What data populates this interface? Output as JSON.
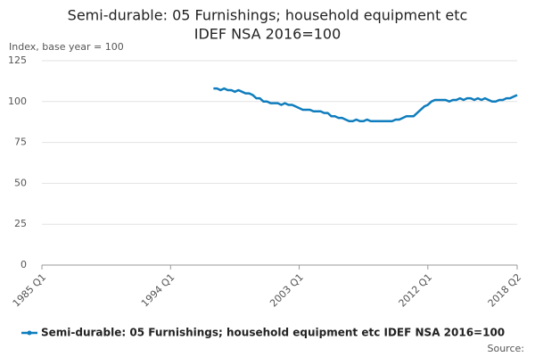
{
  "chart_data": {
    "type": "line",
    "title": [
      "Semi-durable: 05 Furnishings; household equipment etc",
      "IDEF NSA 2016=100"
    ],
    "y_label": "Index, base year = 100",
    "source": "Source:",
    "categories": [
      "1985 Q1",
      null,
      null,
      null,
      null,
      null,
      null,
      null,
      null,
      null,
      null,
      null,
      null,
      null,
      null,
      null,
      null,
      null,
      null,
      null,
      null,
      null,
      null,
      null,
      null,
      null,
      null,
      null,
      null,
      null,
      null,
      null,
      null,
      null,
      null,
      null,
      "1994 Q1",
      null,
      null,
      null,
      null,
      null,
      null,
      null,
      null,
      null,
      null,
      null,
      null,
      null,
      null,
      null,
      null,
      null,
      null,
      null,
      null,
      null,
      null,
      null,
      null,
      null,
      null,
      null,
      null,
      null,
      null,
      null,
      null,
      null,
      null,
      null,
      "2003 Q1",
      null,
      null,
      null,
      null,
      null,
      null,
      null,
      null,
      null,
      null,
      null,
      null,
      null,
      null,
      null,
      null,
      null,
      null,
      null,
      null,
      null,
      null,
      null,
      null,
      null,
      null,
      null,
      null,
      null,
      null,
      null,
      null,
      null,
      null,
      null,
      "2012 Q1",
      null,
      null,
      null,
      null,
      null,
      null,
      null,
      null,
      null,
      null,
      null,
      null,
      null,
      null,
      null,
      null,
      null,
      null,
      null,
      null,
      null,
      null,
      null,
      null,
      "2018 Q2"
    ],
    "series": [
      {
        "name": "Semi-durable: 05 Furnishings; household equipment etc IDEF NSA 2016=100",
        "color": "#0f7dbd",
        "values": [
          null,
          null,
          null,
          null,
          null,
          null,
          null,
          null,
          null,
          null,
          null,
          null,
          null,
          null,
          null,
          null,
          null,
          null,
          null,
          null,
          null,
          null,
          null,
          null,
          null,
          null,
          null,
          null,
          null,
          null,
          null,
          null,
          null,
          null,
          null,
          null,
          null,
          null,
          null,
          null,
          null,
          null,
          null,
          null,
          null,
          null,
          null,
          null,
          108,
          108,
          107,
          108,
          107,
          107,
          106,
          107,
          106,
          105,
          105,
          104,
          102,
          102,
          100,
          100,
          99,
          99,
          99,
          98,
          99,
          98,
          98,
          97,
          96,
          95,
          95,
          95,
          94,
          94,
          94,
          93,
          93,
          91,
          91,
          90,
          90,
          89,
          88,
          88,
          89,
          88,
          88,
          89,
          88,
          88,
          88,
          88,
          88,
          88,
          88,
          89,
          89,
          90,
          91,
          91,
          91,
          93,
          95,
          97,
          98,
          100,
          101,
          101,
          101,
          101,
          100,
          101,
          101,
          102,
          101,
          102,
          102,
          101,
          102,
          101,
          102,
          101,
          100,
          100,
          101,
          101,
          102,
          102,
          103,
          104
        ]
      }
    ],
    "ylim": [
      0,
      125
    ],
    "yticks": [
      0,
      25,
      50,
      75,
      100,
      125
    ],
    "grid": true,
    "legend": "bottom"
  }
}
